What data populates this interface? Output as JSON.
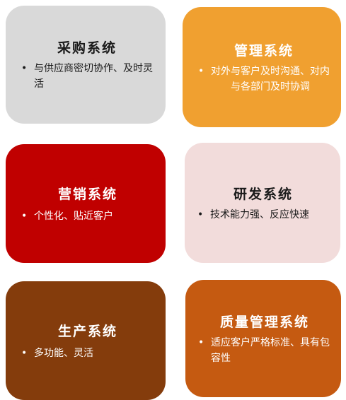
{
  "cards": [
    {
      "title": "采购系统",
      "text": "与供应商密切协作、及时灵活",
      "color": "#d9d9d9"
    },
    {
      "title": "管理系统",
      "text": "对外与客户及时沟通、对内与各部门及时协调",
      "color": "#f0a030"
    },
    {
      "title": "营销系统",
      "text": "个性化、贴近客户",
      "color": "#c00000"
    },
    {
      "title": "研发系统",
      "text": "技术能力强、反应快速",
      "color": "#f2dcdb"
    },
    {
      "title": "生产系统",
      "text": "多功能、灵活",
      "color": "#843c0c"
    },
    {
      "title": "质量管理系统",
      "text": "适应客户严格标准、具有包容性",
      "color": "#c55a11"
    }
  ],
  "bullet_symbol": "•"
}
